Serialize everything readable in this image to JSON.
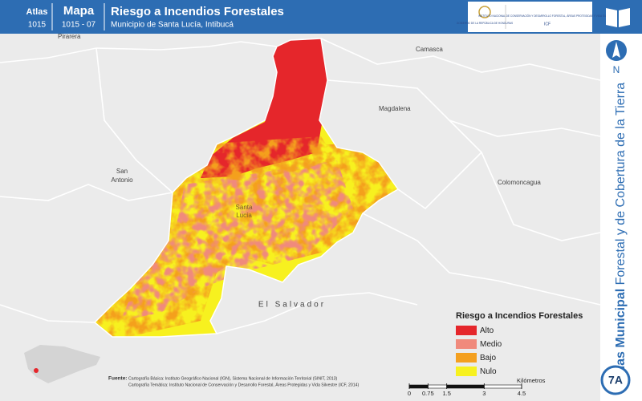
{
  "header": {
    "atlas_label": "Atlas",
    "atlas_number": "1015",
    "map_label": "Mapa",
    "map_number": "1015 - 07",
    "title": "Riesgo a Incendios Forestales",
    "subtitle": "Municipio de Santa Lucía, Intibucá"
  },
  "logos": {
    "government": "GOBIERNO DE LA REPÚBLICA DE HONDURAS",
    "institute": "INSTITUTO NACIONAL DE CONSERVACIÓN Y DESARROLLO FORESTAL, ÁREAS PROTEGIDAS Y VIDA SILVESTRE",
    "institute_short": "ICF"
  },
  "north": "N",
  "side_title": {
    "bold": "Atlas Municipal",
    "regular": "Forestal y de Cobertura de la Tierra"
  },
  "places": [
    "Pirarera",
    "Camasca",
    "Magdalena",
    "San",
    "Antonio",
    "Santa",
    "Lucía",
    "Colomoncagua",
    "El Salvador"
  ],
  "legend": {
    "title": "Riesgo a Incendios Forestales",
    "items": [
      {
        "label": "Alto",
        "color": "#e5262b"
      },
      {
        "label": "Medio",
        "color": "#f08a7c"
      },
      {
        "label": "Bajo",
        "color": "#f4a01f"
      },
      {
        "label": "Nulo",
        "color": "#f7f11f"
      }
    ]
  },
  "sources": {
    "label": "Fuente:",
    "lines": [
      "Cartografía Básica: Instituto Geográfico Nacional (IGN), Sistema Nacional de Información Territorial (SINIT, 2013)",
      "Cartografía Temática: Instituto Nacional de Conservación y Desarrollo Forestal, Áreas Protegidas y Vida Silvestre (ICF, 2014)"
    ]
  },
  "scale_bar": {
    "ticks": [
      0,
      0.75,
      1.5,
      3,
      4.5
    ],
    "unit": "Kilómetros"
  },
  "page_label": "7A"
}
